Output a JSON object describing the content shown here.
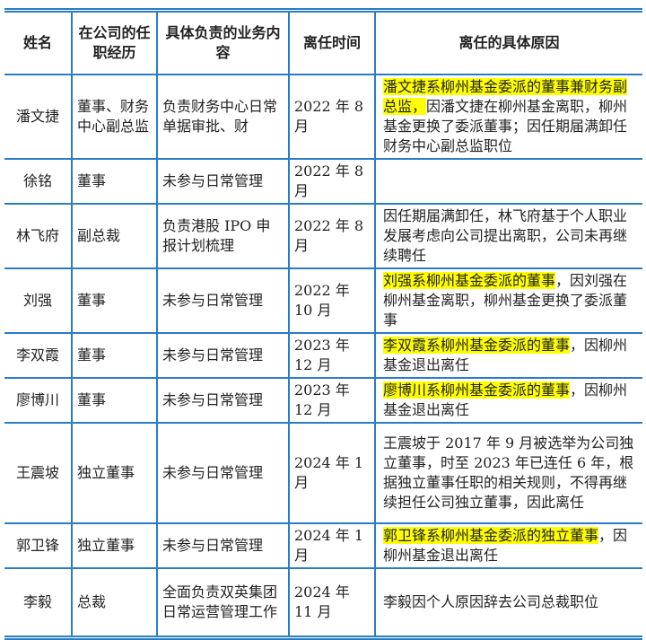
{
  "table": {
    "headers": [
      "姓名",
      "在公司的任职经历",
      "具体负责的业务内容",
      "离任时间",
      "离任的具体原因"
    ],
    "rows": [
      {
        "name": "潘文捷",
        "role": "董事、财务中心副总监",
        "duty": "负责财务中心日常单据审批、财",
        "date": "2022 年 8 月",
        "reason_highlight": "潘文捷系柳州基金委派的董事兼财务副总监，",
        "reason_rest": "因潘文捷在柳州基金离职，柳州基金更换了委派董事；因任期届满卸任财务中心副总监职位"
      },
      {
        "name": "徐铭",
        "role": "董事",
        "duty": "未参与日常管理",
        "date": "2022 年 8 月",
        "reason_highlight": "",
        "reason_rest": ""
      },
      {
        "name": "林飞府",
        "role": "副总裁",
        "duty": "负责港股 IPO 申报计划梳理",
        "date": "2022 年 8 月",
        "reason_highlight": "",
        "reason_rest": "因任期届满卸任，林飞府基于个人职业发展考虑向公司提出离职，公司未再继续聘任"
      },
      {
        "name": "刘强",
        "role": "董事",
        "duty": "未参与日常管理",
        "date": "2022 年 10 月",
        "reason_highlight": "刘强系柳州基金委派的董事",
        "reason_rest": "，因刘强在柳州基金离职，柳州基金更换了委派董事"
      },
      {
        "name": "李双霞",
        "role": "董事",
        "duty": "未参与日常管理",
        "date": "2023 年 12 月",
        "reason_highlight": "李双霞系柳州基金委派的董事",
        "reason_rest": "，因柳州基金退出离任"
      },
      {
        "name": "廖博川",
        "role": "董事",
        "duty": "未参与日常管理",
        "date": "2023 年 12 月",
        "reason_highlight": "廖博川系柳州基金委派的董事",
        "reason_rest": "，因柳州基金退出离任"
      },
      {
        "name": "王震坡",
        "role": "独立董事",
        "duty": "未参与日常管理",
        "date": "2024 年 1 月",
        "reason_highlight": "",
        "reason_rest": "王震坡于 2017 年 9 月被选举为公司独立董事，时至 2023 年已连任 6 年，根据独立董事任职的相关规则，不得再继续担任公司独立董事，因此离任"
      },
      {
        "name": "郭卫锋",
        "role": "独立董事",
        "duty": "未参与日常管理",
        "date": "2024 年 1 月",
        "reason_highlight": "郭卫锋系柳州基金委派的独立董事",
        "reason_rest": "，因柳州基金退出离任"
      },
      {
        "name": "李毅",
        "role": "总裁",
        "duty": "全面负责双英集团日常运营管理工作",
        "date": "2024 年 11 月",
        "reason_highlight": "",
        "reason_rest": "李毅因个人原因辞去公司总裁职位"
      }
    ],
    "highlight_color": "#ffff00",
    "border_color": "#2a7cc7"
  }
}
